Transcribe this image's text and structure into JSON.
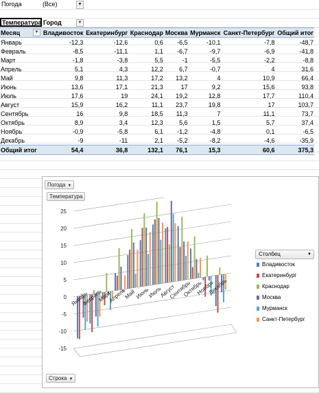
{
  "filter": {
    "label": "Погода",
    "value": "(Все)"
  },
  "pivot": {
    "value_field": "Температура",
    "column_field": "Город",
    "row_field": "Месяц",
    "columns": [
      "Владивосток",
      "Екатеринбург",
      "Краснодар",
      "Москва",
      "Мурманск",
      "Санкт-Петербург",
      "Общий итог"
    ],
    "rows": [
      {
        "month": "Январь",
        "values": [
          "-12,3",
          "-12,6",
          "0,6",
          "-6,5",
          "-10,1",
          "-7,8",
          "-48,7"
        ]
      },
      {
        "month": "Февраль",
        "values": [
          "-8,5",
          "-11,1",
          "1,1",
          "-6,7",
          "-9,7",
          "-6,9",
          "-41,8"
        ]
      },
      {
        "month": "Март",
        "values": [
          "-1,8",
          "-3,8",
          "5,5",
          "-1",
          "-5,5",
          "-2,2",
          "-8,8"
        ]
      },
      {
        "month": "Апрель",
        "values": [
          "5,1",
          "4,3",
          "12,2",
          "6,7",
          "-0,7",
          "4",
          "31,6"
        ]
      },
      {
        "month": "Май",
        "values": [
          "9,8",
          "11,3",
          "17,2",
          "13,2",
          "4",
          "10,9",
          "66,4"
        ]
      },
      {
        "month": "Июнь",
        "values": [
          "13,6",
          "17,1",
          "21,3",
          "17",
          "9,2",
          "15,6",
          "93,8"
        ]
      },
      {
        "month": "Июль",
        "values": [
          "17,6",
          "19",
          "24,1",
          "19,2",
          "12,8",
          "17,7",
          "110,4"
        ]
      },
      {
        "month": "Август",
        "values": [
          "15,9",
          "16,2",
          "11,1",
          "23,7",
          "19,8",
          "17",
          "103,7"
        ]
      },
      {
        "month": "Сентябрь",
        "values": [
          "16",
          "9,8",
          "18,5",
          "11,3",
          "7",
          "11,1",
          "73,7"
        ]
      },
      {
        "month": "Октябрь",
        "values": [
          "8,9",
          "3,4",
          "12,3",
          "5,6",
          "1,5",
          "5,7",
          "37,4"
        ]
      },
      {
        "month": "Ноябрь",
        "values": [
          "-0,9",
          "-5,8",
          "6,1",
          "-1,2",
          "-4,8",
          "0,1",
          "-6,5"
        ]
      },
      {
        "month": "Декабрь",
        "values": [
          "-9",
          "-11",
          "2,1",
          "-5,2",
          "-8,2",
          "-4,6",
          "-35,9"
        ]
      }
    ],
    "total": {
      "label": "Общий итог",
      "values": [
        "54,4",
        "36,8",
        "132,1",
        "76,1",
        "15,3",
        "60,6",
        "375,3"
      ]
    }
  },
  "chart": {
    "filter_button": "Погода",
    "value_button": "Температура",
    "row_button": "Строка",
    "legend_title": "Столбец"
  },
  "chart_data": {
    "type": "bar",
    "categories": [
      "Январь",
      "Февраль",
      "Март",
      "Апрель",
      "Май",
      "Июнь",
      "Июль",
      "Август",
      "Сентябрь",
      "Октябрь",
      "Ноябрь",
      "Декабрь"
    ],
    "series": [
      {
        "name": "Владивосток",
        "values": [
          -12.3,
          -8.5,
          -1.8,
          5.1,
          9.8,
          13.6,
          17.6,
          15.9,
          16,
          8.9,
          -0.9,
          -9
        ]
      },
      {
        "name": "Екатеринбург",
        "values": [
          -12.6,
          -11.1,
          -3.8,
          4.3,
          11.3,
          17.1,
          19,
          16.2,
          9.8,
          3.4,
          -5.8,
          -11
        ]
      },
      {
        "name": "Краснодар",
        "values": [
          0.6,
          1.1,
          5.5,
          12.2,
          17.2,
          21.3,
          24.1,
          11.1,
          18.5,
          12.3,
          6.1,
          2.1
        ]
      },
      {
        "name": "Москва",
        "values": [
          -6.5,
          -6.7,
          -1,
          6.7,
          13.2,
          17,
          19.2,
          23.7,
          11.3,
          5.6,
          -1.2,
          -5.2
        ]
      },
      {
        "name": "Мурманск",
        "values": [
          -10.1,
          -9.7,
          -5.5,
          -0.7,
          4,
          9.2,
          12.8,
          19.8,
          7,
          1.5,
          -4.8,
          -8.2
        ]
      },
      {
        "name": "Санкт-Петербург",
        "values": [
          -7.8,
          -6.9,
          -2.2,
          4,
          10.9,
          15.6,
          17.7,
          17,
          11.1,
          5.7,
          0.1,
          -4.6
        ]
      }
    ],
    "colors": [
      "#4f81bd",
      "#c0504d",
      "#9bbb59",
      "#8064a2",
      "#4bacc6",
      "#f79646"
    ],
    "ylim": [
      -15,
      25
    ],
    "yticks": [
      "-15",
      "-10",
      "-5",
      "0",
      "5",
      "10",
      "15",
      "20",
      "25"
    ],
    "legend": "right",
    "grid": true
  }
}
